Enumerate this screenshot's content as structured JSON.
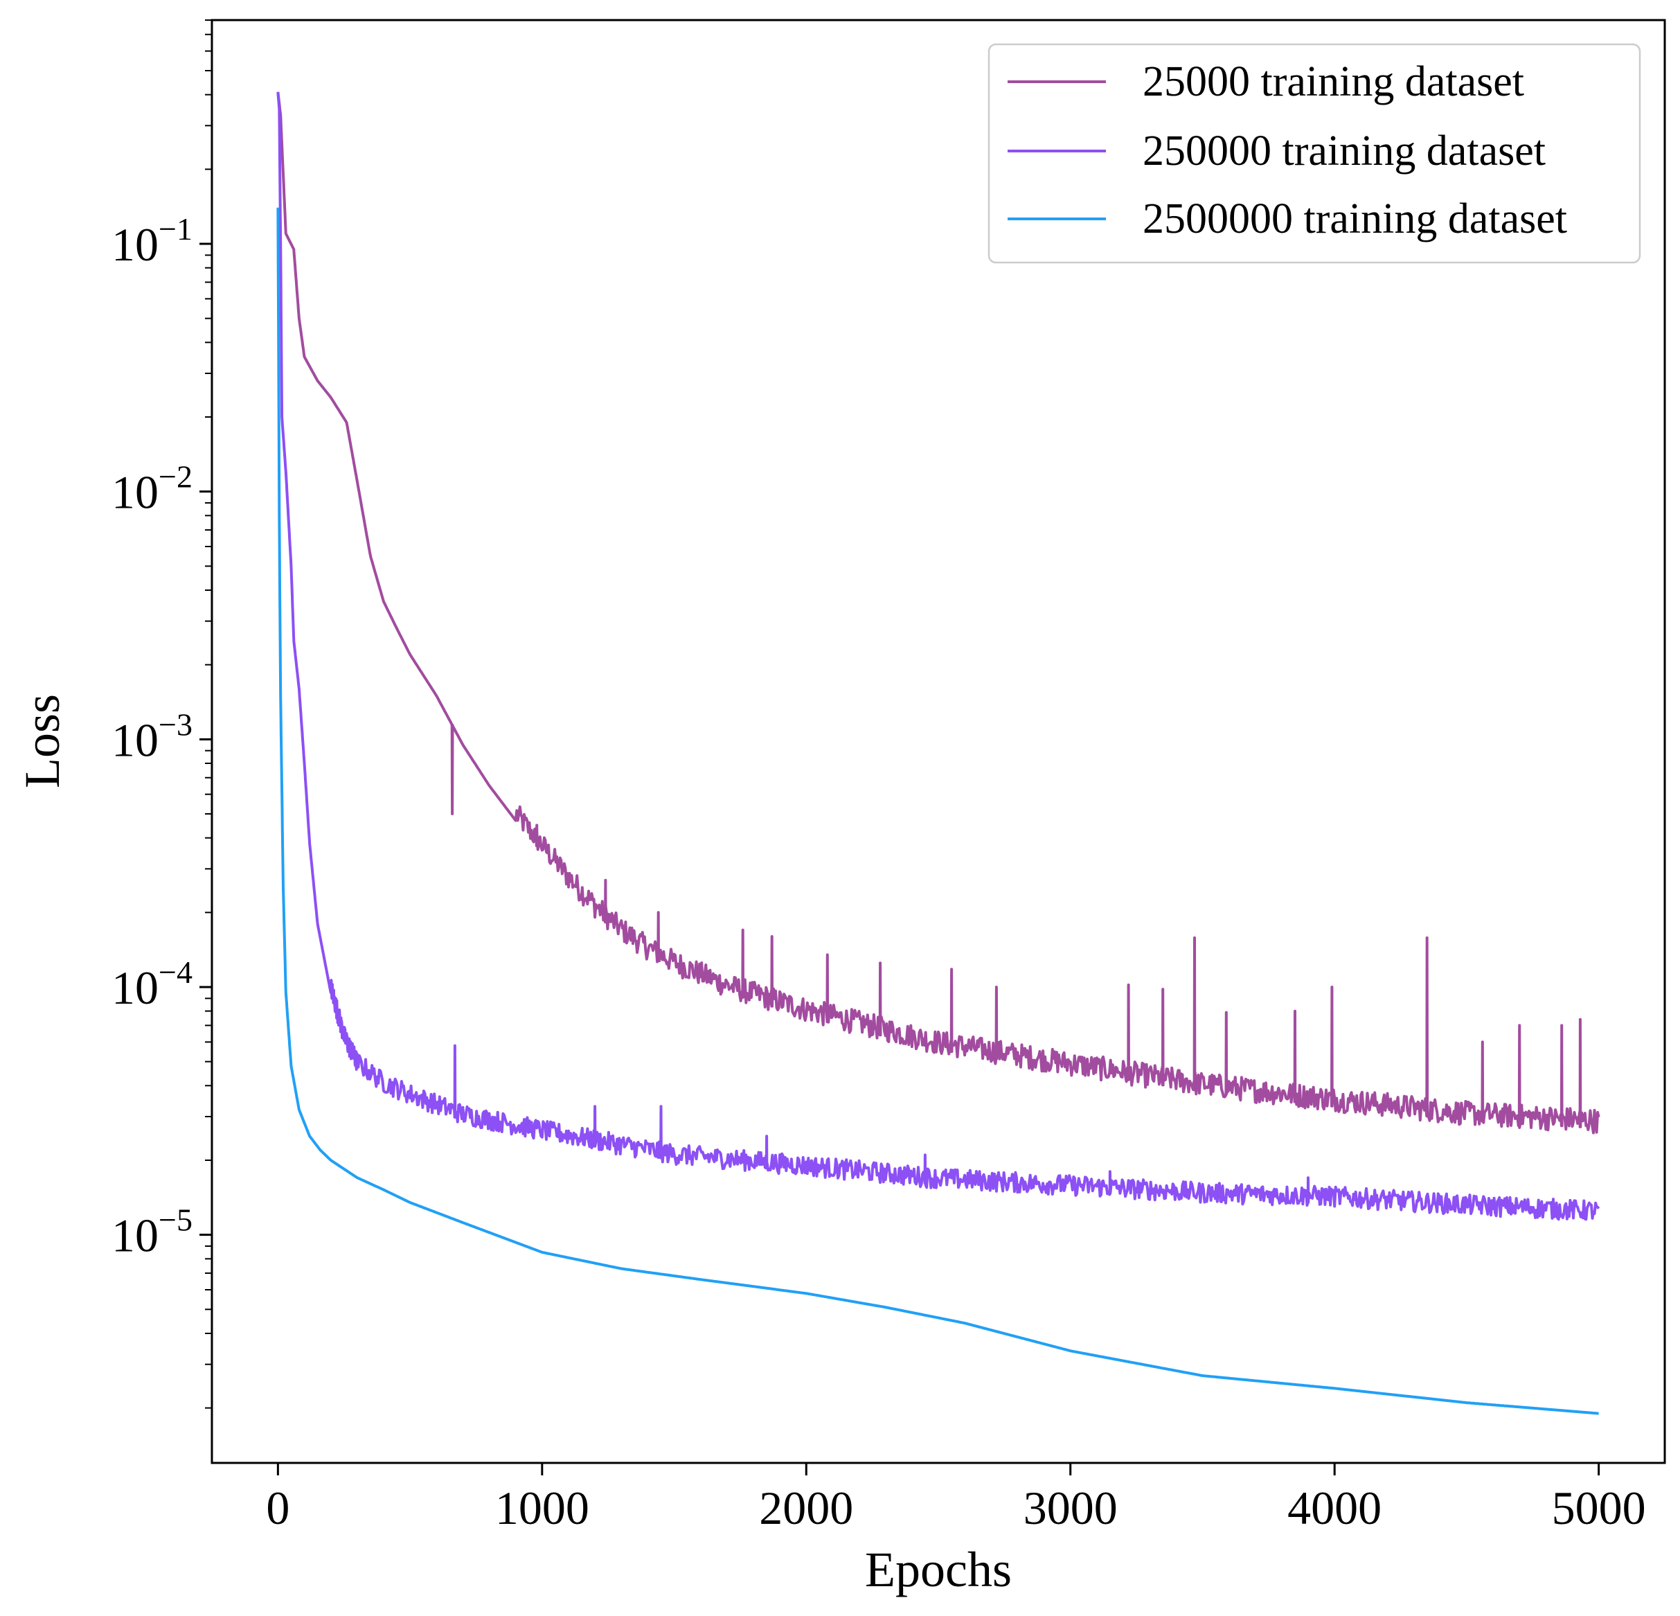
{
  "chart_data": {
    "type": "line",
    "title": "",
    "xlabel": "Epochs",
    "ylabel": "Loss",
    "xscale": "linear",
    "yscale": "log",
    "xlim": [
      -250,
      5250
    ],
    "ylim": [
      1.2e-06,
      0.8
    ],
    "grid": false,
    "legend_position": "top-right",
    "x_ticks": [
      0,
      1000,
      2000,
      3000,
      4000,
      5000
    ],
    "x_tick_labels": [
      "0",
      "1000",
      "2000",
      "3000",
      "4000",
      "5000"
    ],
    "y_ticks": [
      0.1,
      0.01,
      0.001,
      0.0001,
      1e-05
    ],
    "y_tick_labels": [
      {
        "base": "10",
        "exp": "−1"
      },
      {
        "base": "10",
        "exp": "−2"
      },
      {
        "base": "10",
        "exp": "−3"
      },
      {
        "base": "10",
        "exp": "−4"
      },
      {
        "base": "10",
        "exp": "−5"
      }
    ],
    "series": [
      {
        "name": "25000 training dataset",
        "color": "#a24c9f",
        "noise": 0.06,
        "spike_from": 900,
        "spikes": [
          [
            660,
            0.0005
          ],
          [
            980,
            0.00045
          ],
          [
            1240,
            0.00027
          ],
          [
            1440,
            0.0002
          ],
          [
            1760,
            0.00017
          ],
          [
            1870,
            0.00016
          ],
          [
            2080,
            0.000135
          ],
          [
            2280,
            0.000125
          ],
          [
            2550,
            0.000118
          ],
          [
            2720,
            0.0001
          ],
          [
            3220,
            0.000102
          ],
          [
            3350,
            9.8e-05
          ],
          [
            3470,
            0.000158
          ],
          [
            3590,
            7.9e-05
          ],
          [
            3850,
            8e-05
          ],
          [
            3990,
            0.0001
          ],
          [
            4350,
            0.000158
          ],
          [
            4560,
            6e-05
          ],
          [
            4700,
            7e-05
          ],
          [
            4860,
            7e-05
          ],
          [
            4930,
            7.4e-05
          ]
        ],
        "x": [
          0,
          10,
          30,
          60,
          80,
          100,
          150,
          200,
          260,
          300,
          350,
          400,
          450,
          500,
          600,
          700,
          800,
          900,
          1000,
          1100,
          1200,
          1300,
          1400,
          1500,
          1700,
          2000,
          2500,
          3000,
          3500,
          4000,
          4500,
          5000
        ],
        "y": [
          0.41,
          0.33,
          0.11,
          0.095,
          0.05,
          0.035,
          0.028,
          0.024,
          0.019,
          0.011,
          0.0055,
          0.0036,
          0.0028,
          0.0022,
          0.0015,
          0.00095,
          0.00065,
          0.00047,
          0.00035,
          0.00026,
          0.0002,
          0.00016,
          0.000135,
          0.000118,
          9.5e-05,
          7.6e-05,
          5.6e-05,
          4.6e-05,
          3.8e-05,
          3.3e-05,
          2.9e-05,
          2.7e-05
        ]
      },
      {
        "name": "250000 training dataset",
        "color": "#8c50f5",
        "noise": 0.05,
        "spike_from": 200,
        "spikes": [
          [
            670,
            5.8e-05
          ],
          [
            1200,
            3.3e-05
          ],
          [
            1450,
            3.3e-05
          ],
          [
            1850,
            2.5e-05
          ],
          [
            2450,
            2.1e-05
          ],
          [
            3150,
            1.8e-05
          ],
          [
            3900,
            1.7e-05
          ]
        ],
        "x": [
          0,
          5,
          10,
          15,
          30,
          50,
          60,
          80,
          100,
          120,
          150,
          200,
          250,
          300,
          400,
          500,
          700,
          1000,
          1500,
          2000,
          2500,
          3000,
          3500,
          4000,
          4500,
          5000
        ],
        "y": [
          0.41,
          0.35,
          0.1,
          0.02,
          0.012,
          0.005,
          0.0025,
          0.0016,
          0.0008,
          0.00038,
          0.00018,
          9.5e-05,
          6e-05,
          4.7e-05,
          3.9e-05,
          3.5e-05,
          2.9e-05,
          2.5e-05,
          2e-05,
          1.8e-05,
          1.6e-05,
          1.5e-05,
          1.4e-05,
          1.35e-05,
          1.25e-05,
          1.18e-05
        ]
      },
      {
        "name": "2500000 training dataset",
        "color": "#21a0f5",
        "noise": 0,
        "spike_from": 0,
        "spikes": [],
        "x": [
          0,
          2,
          5,
          10,
          20,
          30,
          50,
          80,
          120,
          160,
          200,
          300,
          400,
          500,
          700,
          1000,
          1300,
          1600,
          2000,
          2300,
          2600,
          3000,
          3500,
          4000,
          4500,
          5000
        ],
        "y": [
          0.14,
          0.05,
          0.008,
          0.0015,
          0.00025,
          9.5e-05,
          4.8e-05,
          3.2e-05,
          2.5e-05,
          2.2e-05,
          2e-05,
          1.7e-05,
          1.52e-05,
          1.35e-05,
          1.12e-05,
          8.5e-06,
          7.3e-06,
          6.6e-06,
          5.8e-06,
          5.1e-06,
          4.4e-06,
          3.4e-06,
          2.7e-06,
          2.4e-06,
          2.1e-06,
          1.9e-06
        ]
      }
    ]
  }
}
